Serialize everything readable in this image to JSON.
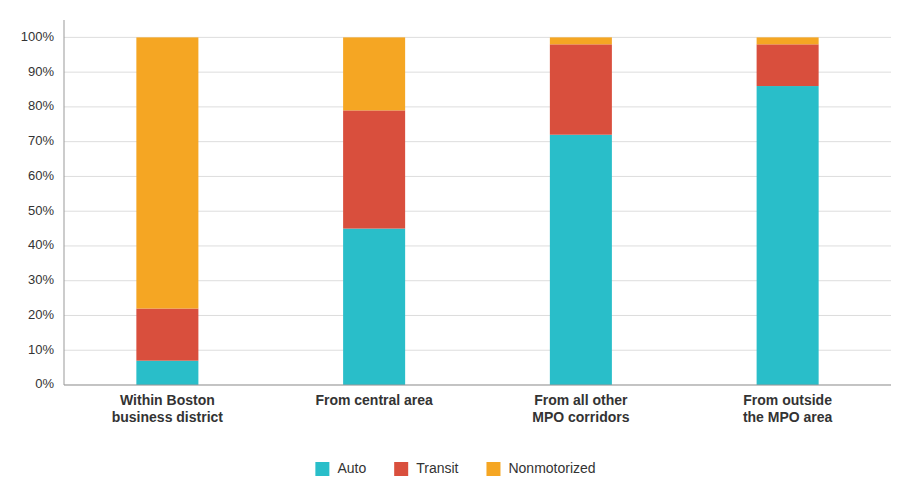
{
  "chart_data": {
    "type": "bar",
    "stacked": true,
    "categories": [
      "Within Boston\nbusiness district",
      "From central area",
      "From all other\nMPO corridors",
      "From outside\nthe MPO area"
    ],
    "series": [
      {
        "name": "Auto",
        "color": "#29BEC9",
        "values": [
          7,
          45,
          72,
          86
        ]
      },
      {
        "name": "Transit",
        "color": "#D94F3D",
        "values": [
          15,
          34,
          26,
          12
        ]
      },
      {
        "name": "Nonmotorized",
        "color": "#F5A623",
        "values": [
          78,
          21,
          2,
          2
        ]
      }
    ],
    "ylim": [
      0,
      105
    ],
    "yticks": [
      {
        "value": 0,
        "label": "0%"
      },
      {
        "value": 10,
        "label": "10%"
      },
      {
        "value": 20,
        "label": "20%"
      },
      {
        "value": 30,
        "label": "30%"
      },
      {
        "value": 40,
        "label": "40%"
      },
      {
        "value": 50,
        "label": "50%"
      },
      {
        "value": 60,
        "label": "60%"
      },
      {
        "value": 70,
        "label": "70%"
      },
      {
        "value": 80,
        "label": "80%"
      },
      {
        "value": 90,
        "label": "90%"
      },
      {
        "value": 100,
        "label": "100%"
      }
    ],
    "grid": true,
    "legend": "bottom"
  }
}
